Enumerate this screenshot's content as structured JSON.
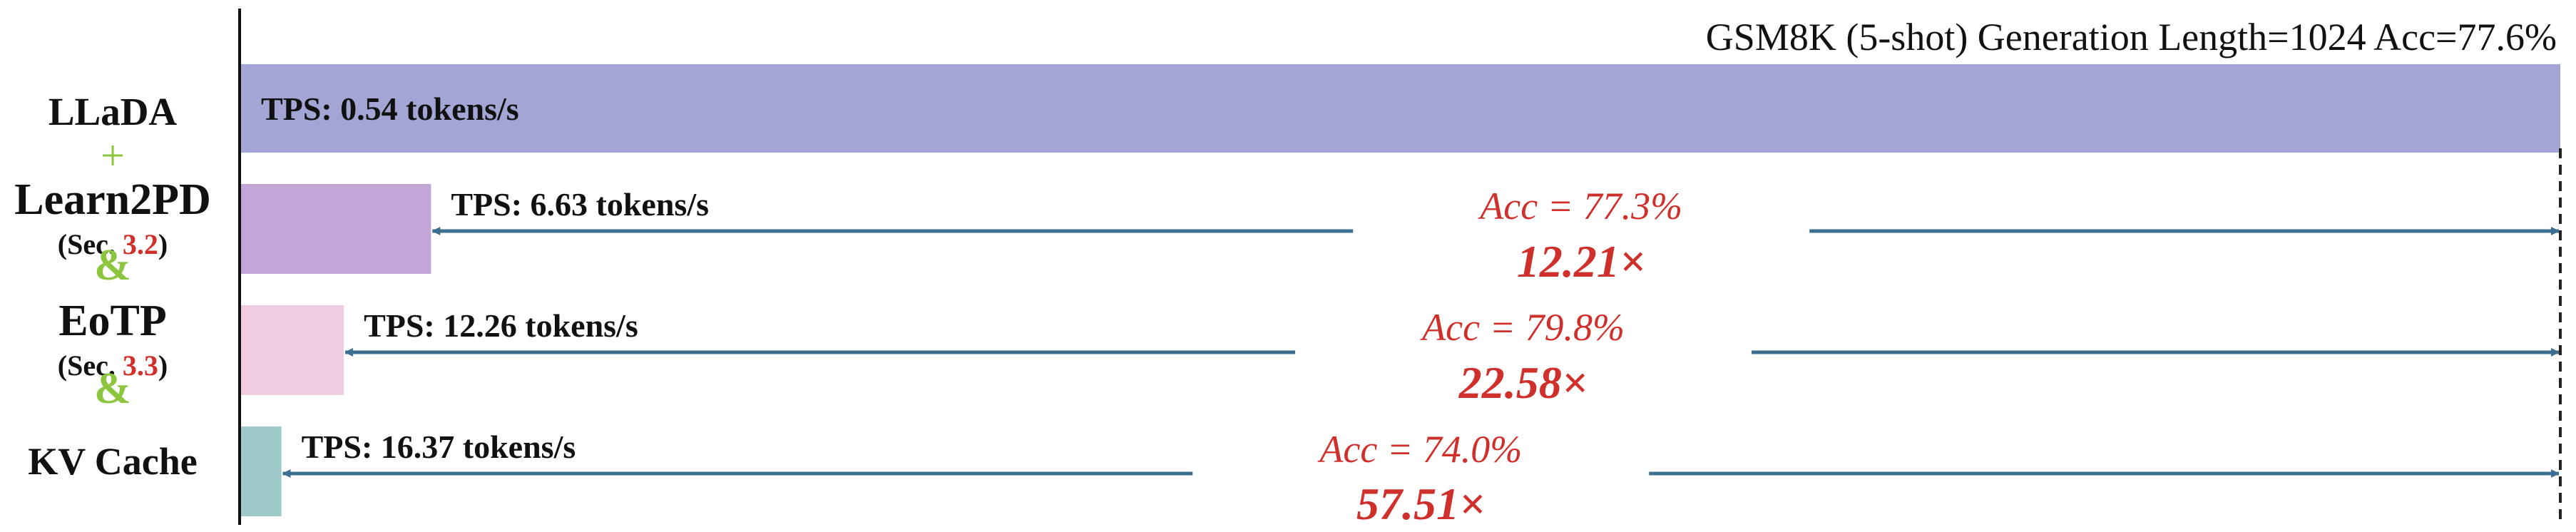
{
  "chart_data": {
    "type": "bar",
    "orientation": "horizontal",
    "title": "GSM8K (5-shot) Generation Length=1024 Acc=77.6%",
    "xlabel": "",
    "ylabel": "",
    "units": "tokens/s",
    "axis": {
      "x_range": [
        0,
        0.54
      ],
      "gridlines": false
    },
    "reference_line": "dashed vertical at baseline bar end",
    "legend": "none",
    "y_labels": [
      {
        "text": "LLaDA",
        "note": ""
      },
      {
        "text": "+",
        "note": ""
      },
      {
        "text": "Learn2PD",
        "note": "(Sec. 3.2)"
      },
      {
        "text": "&",
        "note": ""
      },
      {
        "text": "EoTP",
        "note": "(Sec. 3.3)"
      },
      {
        "text": "&",
        "note": ""
      },
      {
        "text": "KV Cache",
        "note": ""
      }
    ],
    "bars": [
      {
        "tps": 0.54,
        "inverse_time": 1.0,
        "label": "TPS: 0.54 tokens/s",
        "acc": "",
        "speedup": "",
        "color": "#a3a6d4"
      },
      {
        "tps": 6.63,
        "inverse_time": 0.0819,
        "label": "TPS: 6.63 tokens/s",
        "acc": "Acc = 77.3%",
        "speedup": "12.21×",
        "color": "#c3a6d8"
      },
      {
        "tps": 12.26,
        "inverse_time": 0.0443,
        "label": "TPS: 12.26 tokens/s",
        "acc": "Acc = 79.8%",
        "speedup": "22.58×",
        "color": "#efcde1"
      },
      {
        "tps": 16.37,
        "inverse_time": 0.0174,
        "label": "TPS: 16.37 tokens/s",
        "acc": "Acc = 74.0%",
        "speedup": "57.51×",
        "color": "#9ecaca"
      }
    ],
    "colors": {
      "text": "#111111",
      "accent_red": "#d0302b",
      "plus_green": "#8cc63f",
      "arrow": "#3c6e91",
      "reference": "#222222"
    }
  }
}
